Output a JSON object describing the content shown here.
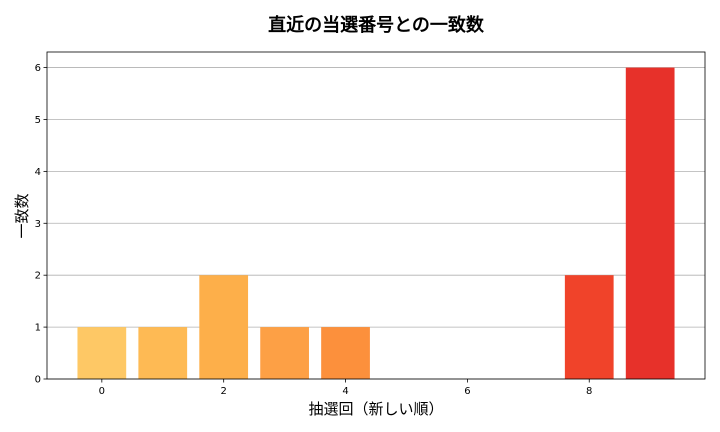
{
  "chart_data": {
    "type": "bar",
    "title": "直近の当選番号との一致数",
    "xlabel": "抽選回（新しい順）",
    "ylabel": "一致数",
    "x": [
      0,
      1,
      2,
      3,
      4,
      5,
      6,
      7,
      8,
      9
    ],
    "values": [
      1,
      1,
      2,
      1,
      1,
      0,
      0,
      0,
      2,
      6
    ],
    "xticks": [
      0,
      2,
      4,
      6,
      8
    ],
    "yticks": [
      0,
      1,
      2,
      3,
      4,
      5,
      6
    ],
    "xlim": [
      -0.9,
      9.9
    ],
    "ylim": [
      0,
      6.3
    ],
    "grid": "y",
    "bar_colors": [
      "#fec865",
      "#feba54",
      "#fdaf4a",
      "#fda045",
      "#fc903c",
      "#fc7f36",
      "#fb6b2f",
      "#f35a2e",
      "#f0432a",
      "#e7312a"
    ]
  }
}
